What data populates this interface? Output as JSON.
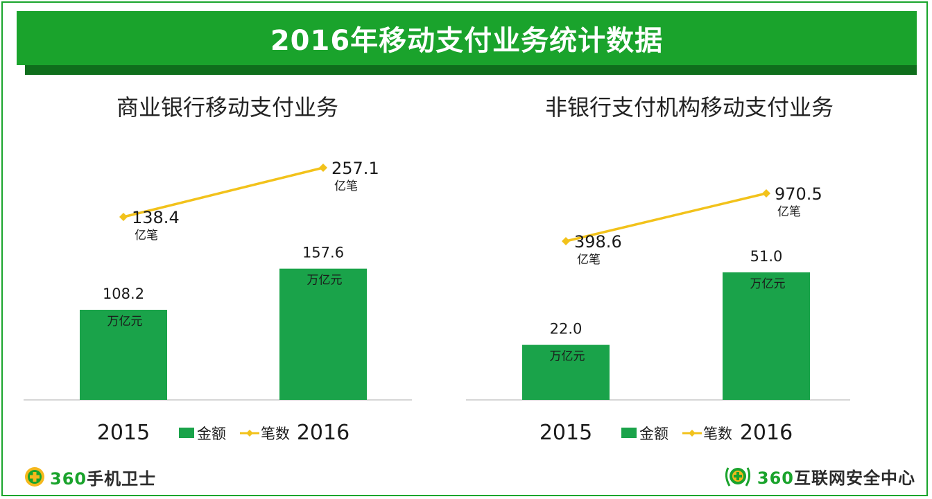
{
  "title": "2016年移动支付业务统计数据",
  "legend": {
    "bar_label": "金额",
    "line_label": "笔数"
  },
  "colors": {
    "bar": "#1aa34a",
    "line": "#f2c21b",
    "banner": "#1aa32c",
    "banner_shadow": "#0f6e1c",
    "axis": "#c8c8c8"
  },
  "logos": {
    "left": {
      "number": "360",
      "text": "手机卫士",
      "icon": "shield-plus-icon"
    },
    "right": {
      "number": "360",
      "text": "互联网安全中心",
      "icon": "laurel-shield-icon"
    }
  },
  "chart_data": [
    {
      "type": "bar",
      "title": "商业银行移动支付业务",
      "categories": [
        "2015",
        "2016"
      ],
      "series": [
        {
          "name": "金额",
          "type": "bar",
          "values": [
            108.2,
            157.6
          ],
          "labels": [
            "108.2",
            "157.6"
          ],
          "unit": "万亿元"
        },
        {
          "name": "笔数",
          "type": "line",
          "values": [
            138.4,
            257.1
          ],
          "labels": [
            "138.4",
            "257.1"
          ],
          "unit": "亿笔"
        }
      ],
      "legend_position": "bottom",
      "grid": false
    },
    {
      "type": "bar",
      "title": "非银行支付机构移动支付业务",
      "categories": [
        "2015",
        "2016"
      ],
      "series": [
        {
          "name": "金额",
          "type": "bar",
          "values": [
            22.0,
            51.0
          ],
          "labels": [
            "22.0",
            "51.0"
          ],
          "unit": "万亿元"
        },
        {
          "name": "笔数",
          "type": "line",
          "values": [
            398.6,
            970.5
          ],
          "labels": [
            "398.6",
            "970.5"
          ],
          "unit": "亿笔"
        }
      ],
      "legend_position": "bottom",
      "grid": false
    }
  ]
}
